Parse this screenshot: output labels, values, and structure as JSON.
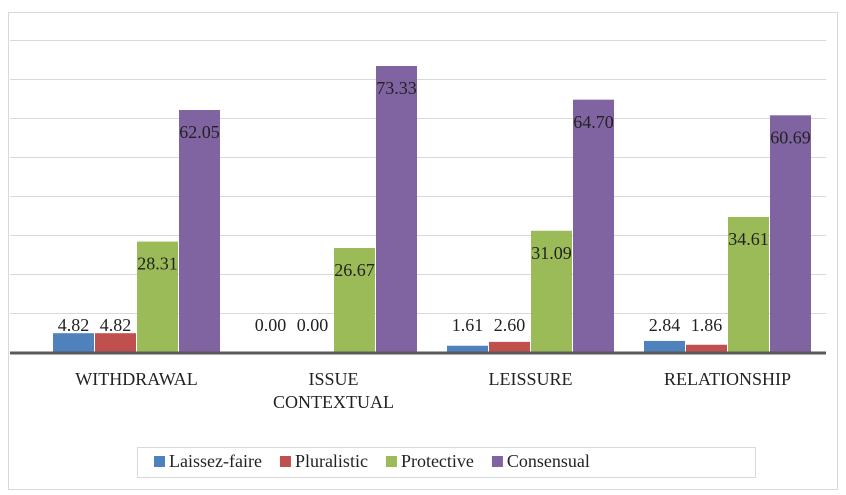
{
  "chart_data": {
    "type": "bar",
    "categories": [
      "WITHDRAWAL",
      "ISSUE CONTEXTUAL",
      "LEISSURE",
      "RELATIONSHIP"
    ],
    "series": [
      {
        "name": "Laissez-faire",
        "color": "#4f81bd",
        "values": [
          4.82,
          0,
          1.61,
          2.84
        ],
        "value_labels": [
          "4.82",
          "0.00",
          "1.61",
          "2.84"
        ]
      },
      {
        "name": "Pluralistic",
        "color": "#c0504d",
        "values": [
          4.82,
          0,
          2.6,
          1.86
        ],
        "value_labels": [
          "4.82",
          "0.00",
          "2.60",
          "1.86"
        ]
      },
      {
        "name": "Protective",
        "color": "#9bbb59",
        "values": [
          28.31,
          26.67,
          31.09,
          34.61
        ],
        "value_labels": [
          "28.31",
          "26.67",
          "31.09",
          "34.61"
        ]
      },
      {
        "name": "Consensual",
        "color": "#8064a2",
        "values": [
          62.05,
          73.33,
          64.7,
          60.69
        ],
        "value_labels": [
          "62.05",
          "73.33",
          "64.70",
          "60.69"
        ]
      }
    ],
    "ylim": [
      0,
      80
    ],
    "yticks": [
      0,
      10,
      20,
      30,
      40,
      50,
      60,
      70,
      80
    ],
    "grid": true,
    "legend": "bottom"
  }
}
